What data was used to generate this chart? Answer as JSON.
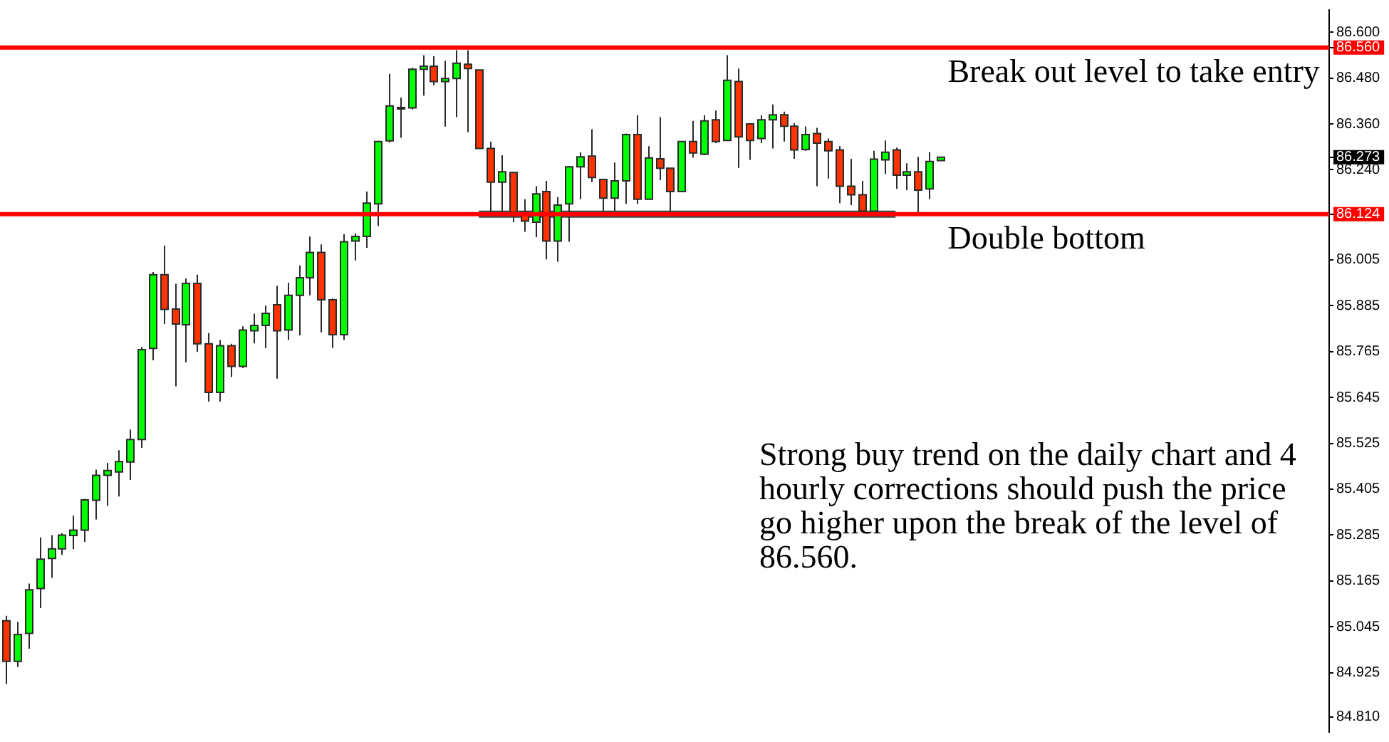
{
  "chart_data": {
    "type": "candlestick",
    "categories": [
      null,
      null,
      null,
      null,
      null,
      null,
      null,
      null,
      null,
      null,
      null,
      null,
      null,
      null,
      null,
      null,
      null,
      null,
      null,
      null,
      null,
      null,
      null,
      null,
      null,
      null,
      null,
      null,
      null,
      null,
      null,
      null,
      null,
      null,
      null,
      null,
      null,
      null,
      null,
      null,
      null,
      null,
      null,
      null,
      null,
      null,
      null,
      null,
      null,
      null,
      null,
      null,
      null,
      null,
      null,
      null,
      null,
      null,
      null,
      null,
      null,
      null,
      null,
      null,
      null,
      null,
      null,
      null,
      null,
      null,
      null,
      null,
      null,
      null,
      null,
      null,
      null,
      null,
      null,
      null,
      null,
      null,
      null,
      null,
      null,
      null,
      null,
      null,
      null,
      null,
      null,
      null,
      null,
      null,
      null,
      null,
      null,
      null,
      null,
      null,
      null,
      null,
      null,
      null,
      null,
      null,
      null,
      null,
      null,
      null,
      null,
      null,
      null,
      null,
      null,
      null,
      null,
      null
    ],
    "ohlc": [
      [
        85.061,
        85.074,
        84.895,
        84.955
      ],
      [
        84.955,
        85.058,
        84.94,
        85.025
      ],
      [
        85.028,
        85.158,
        84.988,
        85.142
      ],
      [
        85.145,
        85.279,
        85.094,
        85.222
      ],
      [
        85.224,
        85.285,
        85.173,
        85.249
      ],
      [
        85.249,
        85.29,
        85.233,
        85.285
      ],
      [
        85.284,
        85.336,
        85.248,
        85.298
      ],
      [
        85.298,
        85.38,
        85.267,
        85.377
      ],
      [
        85.376,
        85.456,
        85.326,
        85.441
      ],
      [
        85.441,
        85.474,
        85.361,
        85.454
      ],
      [
        85.45,
        85.507,
        85.386,
        85.477
      ],
      [
        85.476,
        85.561,
        85.429,
        85.535
      ],
      [
        85.535,
        85.777,
        85.513,
        85.77
      ],
      [
        85.773,
        85.973,
        85.742,
        85.966
      ],
      [
        85.966,
        86.042,
        85.837,
        85.875
      ],
      [
        85.876,
        85.942,
        85.674,
        85.837
      ],
      [
        85.835,
        85.956,
        85.737,
        85.943
      ],
      [
        85.943,
        85.966,
        85.764,
        85.785
      ],
      [
        85.785,
        85.813,
        85.634,
        85.658
      ],
      [
        85.658,
        85.795,
        85.634,
        85.78
      ],
      [
        85.78,
        85.785,
        85.698,
        85.726
      ],
      [
        85.726,
        85.831,
        85.722,
        85.821
      ],
      [
        85.819,
        85.864,
        85.786,
        85.833
      ],
      [
        85.833,
        85.885,
        85.774,
        85.865
      ],
      [
        85.887,
        85.937,
        85.694,
        85.819
      ],
      [
        85.821,
        85.945,
        85.795,
        85.912
      ],
      [
        85.912,
        85.99,
        85.807,
        85.958
      ],
      [
        85.958,
        86.066,
        85.912,
        86.024
      ],
      [
        86.024,
        86.045,
        85.815,
        85.9
      ],
      [
        85.9,
        85.904,
        85.774,
        85.809
      ],
      [
        85.809,
        86.072,
        85.795,
        86.052
      ],
      [
        86.054,
        86.074,
        86.003,
        86.066
      ],
      [
        86.066,
        86.183,
        86.036,
        86.153
      ],
      [
        86.151,
        86.316,
        86.093,
        86.314
      ],
      [
        86.316,
        86.491,
        86.311,
        86.407
      ],
      [
        86.401,
        86.429,
        86.324,
        86.403
      ],
      [
        86.402,
        86.507,
        86.398,
        86.503
      ],
      [
        86.503,
        86.54,
        86.434,
        86.511
      ],
      [
        86.511,
        86.537,
        86.461,
        86.471
      ],
      [
        86.471,
        86.525,
        86.353,
        86.479
      ],
      [
        86.479,
        86.553,
        86.378,
        86.519
      ],
      [
        86.516,
        86.553,
        86.338,
        86.505
      ],
      [
        86.501,
        86.501,
        86.296,
        86.296
      ],
      [
        86.296,
        86.314,
        86.127,
        86.208
      ],
      [
        86.208,
        86.278,
        86.127,
        86.235
      ],
      [
        86.233,
        86.235,
        86.103,
        86.129
      ],
      [
        86.129,
        86.163,
        86.078,
        86.106
      ],
      [
        86.103,
        86.197,
        86.064,
        86.177
      ],
      [
        86.183,
        86.211,
        86.006,
        86.054
      ],
      [
        86.054,
        86.169,
        86.0,
        86.148
      ],
      [
        86.151,
        86.25,
        86.052,
        86.248
      ],
      [
        86.248,
        86.286,
        86.163,
        86.274
      ],
      [
        86.276,
        86.346,
        86.208,
        86.22
      ],
      [
        86.215,
        86.215,
        86.133,
        86.166
      ],
      [
        86.166,
        86.259,
        86.133,
        86.211
      ],
      [
        86.211,
        86.335,
        86.151,
        86.332
      ],
      [
        86.332,
        86.383,
        86.151,
        86.163
      ],
      [
        86.163,
        86.302,
        86.163,
        86.271
      ],
      [
        86.269,
        86.378,
        86.213,
        86.244
      ],
      [
        86.244,
        86.244,
        86.133,
        86.183
      ],
      [
        86.183,
        86.314,
        86.183,
        86.314
      ],
      [
        86.314,
        86.368,
        86.272,
        86.284
      ],
      [
        86.281,
        86.383,
        86.278,
        86.368
      ],
      [
        86.371,
        86.395,
        86.31,
        86.314
      ],
      [
        86.317,
        86.54,
        86.317,
        86.474
      ],
      [
        86.471,
        86.505,
        86.245,
        86.326
      ],
      [
        86.36,
        86.36,
        86.266,
        86.317
      ],
      [
        86.322,
        86.383,
        86.31,
        86.371
      ],
      [
        86.371,
        86.411,
        86.296,
        86.384
      ],
      [
        86.384,
        86.392,
        86.314,
        86.354
      ],
      [
        86.354,
        86.362,
        86.269,
        86.292
      ],
      [
        86.293,
        86.353,
        86.29,
        86.332
      ],
      [
        86.335,
        86.35,
        86.197,
        86.31
      ],
      [
        86.314,
        86.322,
        86.217,
        86.29
      ],
      [
        86.292,
        86.302,
        86.153,
        86.197
      ],
      [
        86.197,
        86.269,
        86.148,
        86.175
      ],
      [
        86.175,
        86.211,
        86.132,
        86.132
      ],
      [
        86.132,
        86.29,
        86.132,
        86.268
      ],
      [
        86.266,
        86.317,
        86.229,
        86.286
      ],
      [
        86.292,
        86.298,
        86.19,
        86.226
      ],
      [
        86.226,
        86.257,
        86.187,
        86.235
      ],
      [
        86.235,
        86.274,
        86.129,
        86.187
      ],
      [
        86.19,
        86.286,
        86.163,
        86.262
      ],
      [
        86.264,
        86.273,
        86.264,
        86.273
      ],
      null,
      null,
      null,
      null,
      null,
      null,
      null,
      null,
      null,
      null,
      null,
      null,
      null,
      null,
      null,
      null,
      null,
      null,
      null,
      null,
      null,
      null,
      null,
      null,
      null,
      null,
      null,
      null,
      null,
      null,
      null,
      null,
      null,
      null
    ],
    "colors": [
      "#ff3300",
      "#00ff00",
      "#00ff00",
      "#00ff00",
      "#00ff00",
      "#00ff00",
      "#00ff00",
      "#00ff00",
      "#00ff00",
      "#00ff00",
      "#00ff00",
      "#00ff00",
      "#00ff00",
      "#00ff00",
      "#ff3300",
      "#ff3300",
      "#00ff00",
      "#ff3300",
      "#ff3300",
      "#00ff00",
      "#ff3300",
      "#00ff00",
      "#00ff00",
      "#00ff00",
      "#ff3300",
      "#00ff00",
      "#00ff00",
      "#00ff00",
      "#ff3300",
      "#ff3300",
      "#00ff00",
      "#00ff00",
      "#00ff00",
      "#00ff00",
      "#00ff00",
      "#00ff00",
      "#00ff00",
      "#00ff00",
      "#ff3300",
      "#00ff00",
      "#00ff00",
      "#ff3300",
      "#ff3300",
      "#ff3300",
      "#00ff00",
      "#ff3300",
      "#ff3300",
      "#00ff00",
      "#ff3300",
      "#00ff00",
      "#00ff00",
      "#00ff00",
      "#ff3300",
      "#ff3300",
      "#00ff00",
      "#00ff00",
      "#ff3300",
      "#00ff00",
      "#ff3300",
      "#ff3300",
      "#00ff00",
      "#ff3300",
      "#00ff00",
      "#ff3300",
      "#00ff00",
      "#ff3300",
      "#ff3300",
      "#00ff00",
      "#00ff00",
      "#ff3300",
      "#ff3300",
      "#00ff00",
      "#ff3300",
      "#ff3300",
      "#ff3300",
      "#ff3300",
      "#ff3300",
      "#00ff00",
      "#00ff00",
      "#ff3300",
      "#00ff00",
      "#ff3300",
      "#00ff00",
      "#00ff00",
      null,
      null,
      null,
      null,
      null,
      null,
      null,
      null,
      null,
      null,
      null,
      null,
      null,
      null,
      null,
      null,
      null,
      null,
      null,
      null,
      null,
      null,
      null,
      null,
      null,
      null,
      null,
      null,
      null,
      null,
      null,
      null,
      null,
      null
    ],
    "series": [
      {
        "type": "line",
        "color": "#334d4d",
        "values": [
          null,
          null,
          null,
          null,
          null,
          null,
          null,
          null,
          null,
          null,
          null,
          null,
          null,
          null,
          null,
          null,
          null,
          null,
          null,
          null,
          null,
          null,
          null,
          null,
          null,
          null,
          null,
          null,
          null,
          null,
          null,
          null,
          null,
          null,
          null,
          null,
          null,
          null,
          null,
          null,
          null,
          null,
          86.124,
          86.124,
          86.124,
          86.124,
          86.124,
          86.124,
          86.124,
          86.124,
          86.124,
          86.124,
          86.124,
          86.124,
          86.124,
          86.124,
          86.124,
          86.124,
          86.124,
          86.124,
          86.124,
          86.124,
          86.124,
          86.124,
          86.124,
          86.124,
          86.124,
          86.124,
          86.124,
          86.124,
          86.124,
          86.124,
          86.124,
          86.124,
          86.124,
          86.124,
          86.124,
          86.124,
          86.124,
          86.124,
          null,
          null,
          null,
          null,
          null,
          null,
          null,
          null,
          null,
          null,
          null,
          null,
          null,
          null,
          null,
          null,
          null,
          null,
          null,
          null,
          null,
          null,
          null,
          null,
          null,
          null,
          null,
          null,
          null,
          null,
          null,
          null,
          null,
          null,
          null,
          null,
          null,
          null
        ]
      }
    ],
    "ylim": [
      84.77,
      86.658
    ],
    "yticks": [
      {
        "value": 86.6,
        "label": "86.600"
      },
      {
        "value": 86.56,
        "label": "86.560"
      },
      {
        "value": 86.48,
        "label": "86.480"
      },
      {
        "value": 86.36,
        "label": "86.360"
      },
      86.273,
      {
        "value": 86.24,
        "label": "86.240"
      },
      86.124,
      86.005,
      85.885,
      85.765,
      85.645,
      85.525,
      85.405,
      85.285,
      85.165,
      85.045,
      84.925,
      {
        "value": 84.81,
        "label": "84.810"
      }
    ],
    "tick_labels": "y",
    "ref_lines": [
      {
        "axis": "y",
        "value": 86.56,
        "label": "Break out level to take entry",
        "color": "#ff0000"
      },
      {
        "axis": "y",
        "value": 86.124,
        "label": "Double bottom",
        "color": "#ff0000"
      }
    ],
    "annotations": [
      "Strong buy trend on the daily chart and 4 hourly corrections should push the price go higher upon the break of the level of 86.560."
    ]
  }
}
